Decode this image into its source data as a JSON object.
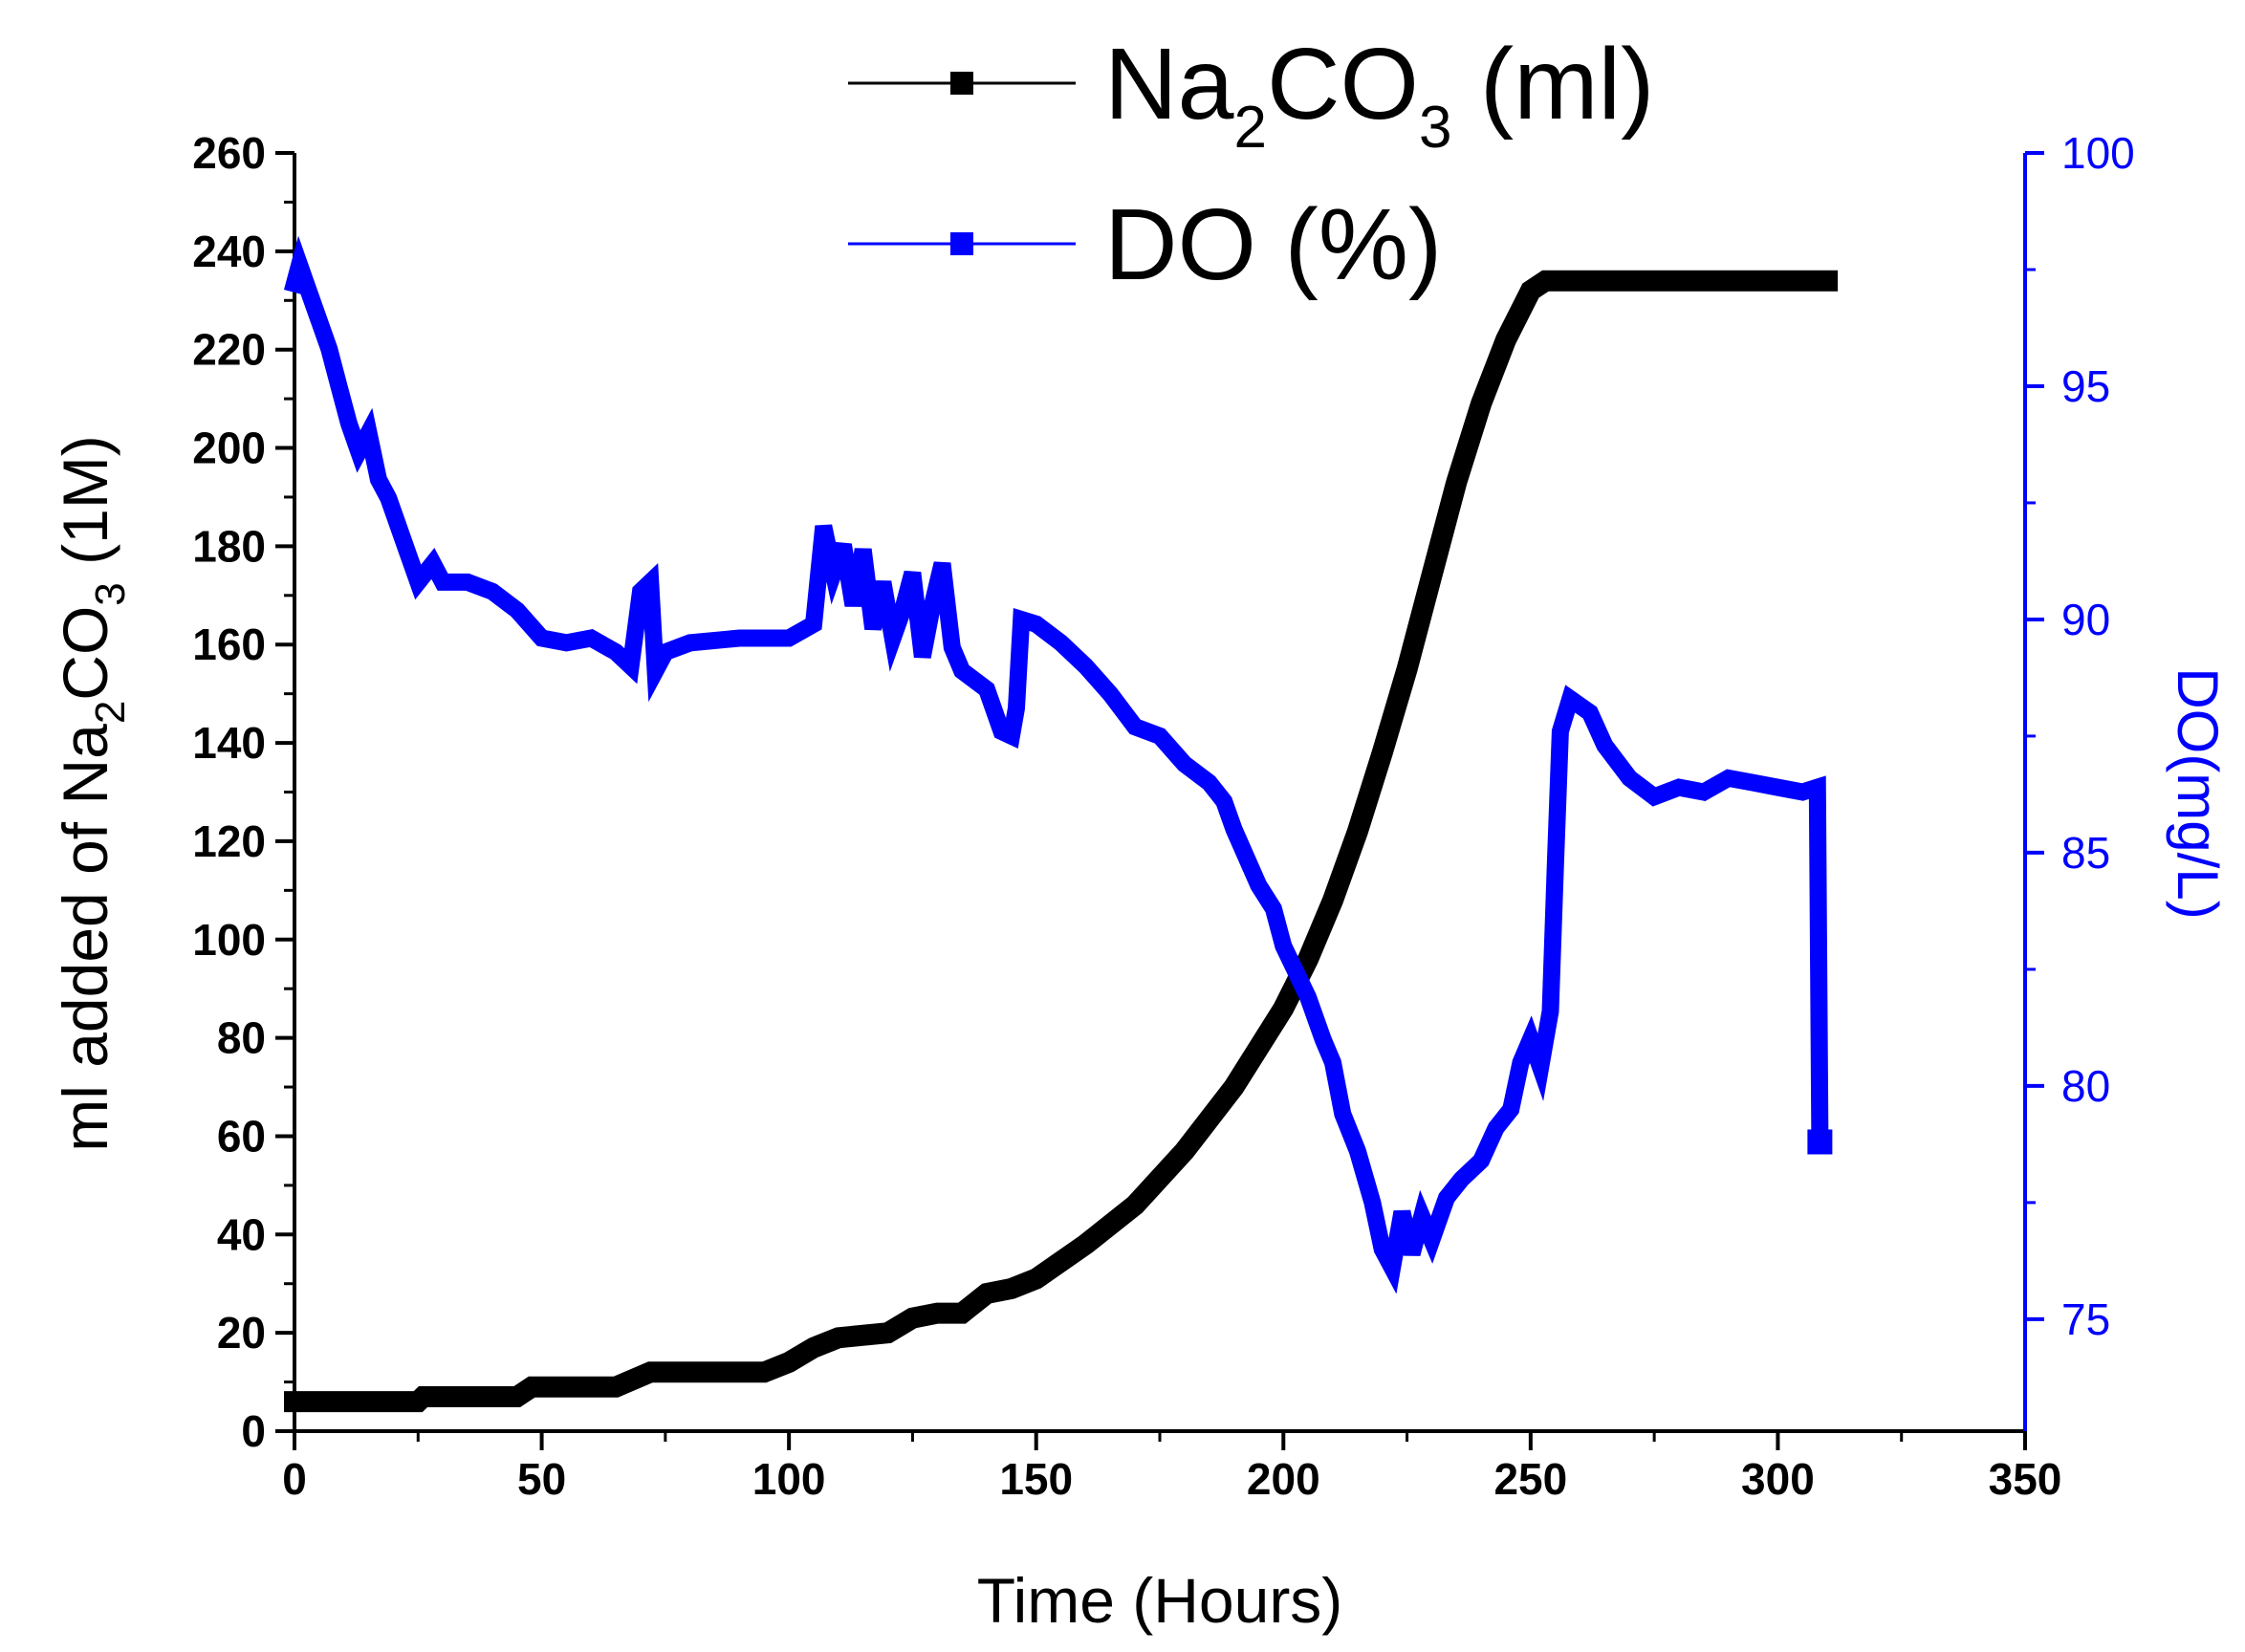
{
  "chart_data": {
    "type": "line",
    "title": "",
    "x_axis": {
      "label": "Time (Hours)",
      "range": [
        0,
        350
      ],
      "ticks": [
        0,
        50,
        100,
        150,
        200,
        250,
        300,
        350
      ]
    },
    "y_axis_left": {
      "label_prefix": "ml added of Na",
      "label_sub_1": "2",
      "label_mid": "CO",
      "label_sub_2": "3",
      "label_suffix": " (1M)",
      "range": [
        0,
        260
      ],
      "ticks": [
        0,
        20,
        40,
        60,
        80,
        100,
        120,
        140,
        160,
        180,
        200,
        220,
        240,
        260
      ]
    },
    "y_axis_right": {
      "label": "DO(mg/L)",
      "range": [
        72.6,
        100
      ],
      "ticks": [
        75,
        80,
        85,
        90,
        95,
        100
      ]
    },
    "legend": {
      "position": "top-center",
      "entries": [
        {
          "name_prefix": "Na",
          "sub_1": "2",
          "mid": "CO",
          "sub_2": "3",
          "suffix": " (ml)",
          "color": "#000000"
        },
        {
          "name": "DO (%)",
          "color": "#0000ff"
        }
      ]
    },
    "series": [
      {
        "name": "Na2CO3 (ml)",
        "axis": "left",
        "color": "#000000",
        "points": [
          [
            0,
            6
          ],
          [
            25,
            6
          ],
          [
            26,
            7
          ],
          [
            45,
            7
          ],
          [
            48,
            9
          ],
          [
            65,
            9
          ],
          [
            72,
            12
          ],
          [
            95,
            12
          ],
          [
            100,
            14
          ],
          [
            105,
            17
          ],
          [
            110,
            19
          ],
          [
            120,
            20
          ],
          [
            125,
            23
          ],
          [
            130,
            24
          ],
          [
            135,
            24
          ],
          [
            140,
            28
          ],
          [
            145,
            29
          ],
          [
            150,
            31
          ],
          [
            160,
            38
          ],
          [
            170,
            46
          ],
          [
            180,
            57
          ],
          [
            190,
            70
          ],
          [
            200,
            86
          ],
          [
            205,
            96
          ],
          [
            210,
            108
          ],
          [
            215,
            122
          ],
          [
            220,
            138
          ],
          [
            225,
            155
          ],
          [
            230,
            174
          ],
          [
            235,
            193
          ],
          [
            240,
            209
          ],
          [
            245,
            222
          ],
          [
            250,
            232
          ],
          [
            253,
            234
          ],
          [
            258,
            234
          ],
          [
            310,
            234
          ]
        ]
      },
      {
        "name": "DO (%)",
        "axis": "right",
        "color": "#0000ff",
        "points": [
          [
            0,
            97.2
          ],
          [
            1,
            97.6
          ],
          [
            3,
            97.0
          ],
          [
            5,
            96.4
          ],
          [
            7,
            95.8
          ],
          [
            9,
            95.0
          ],
          [
            11,
            94.2
          ],
          [
            13,
            93.6
          ],
          [
            15,
            94.0
          ],
          [
            17,
            93.0
          ],
          [
            19,
            92.6
          ],
          [
            21,
            92.0
          ],
          [
            23,
            91.4
          ],
          [
            25,
            90.8
          ],
          [
            28,
            91.2
          ],
          [
            30,
            90.8
          ],
          [
            35,
            90.8
          ],
          [
            40,
            90.6
          ],
          [
            45,
            90.2
          ],
          [
            50,
            89.6
          ],
          [
            55,
            89.5
          ],
          [
            60,
            89.6
          ],
          [
            65,
            89.3
          ],
          [
            68,
            89.0
          ],
          [
            70,
            90.6
          ],
          [
            72,
            90.8
          ],
          [
            73,
            88.9
          ],
          [
            75,
            89.3
          ],
          [
            80,
            89.5
          ],
          [
            90,
            89.6
          ],
          [
            100,
            89.6
          ],
          [
            105,
            89.9
          ],
          [
            107,
            92.0
          ],
          [
            109,
            91.0
          ],
          [
            111,
            91.6
          ],
          [
            113,
            90.3
          ],
          [
            115,
            91.5
          ],
          [
            117,
            89.8
          ],
          [
            119,
            90.8
          ],
          [
            121,
            89.6
          ],
          [
            123,
            90.2
          ],
          [
            125,
            91.0
          ],
          [
            127,
            89.2
          ],
          [
            129,
            90.3
          ],
          [
            131,
            91.2
          ],
          [
            133,
            89.4
          ],
          [
            135,
            88.9
          ],
          [
            140,
            88.5
          ],
          [
            143,
            87.6
          ],
          [
            145,
            87.5
          ],
          [
            146,
            88.1
          ],
          [
            147,
            90.0
          ],
          [
            150,
            89.9
          ],
          [
            155,
            89.5
          ],
          [
            160,
            89.0
          ],
          [
            165,
            88.4
          ],
          [
            170,
            87.7
          ],
          [
            175,
            87.5
          ],
          [
            180,
            86.9
          ],
          [
            185,
            86.5
          ],
          [
            188,
            86.1
          ],
          [
            190,
            85.5
          ],
          [
            195,
            84.3
          ],
          [
            198,
            83.8
          ],
          [
            200,
            83.0
          ],
          [
            205,
            81.9
          ],
          [
            208,
            81.0
          ],
          [
            210,
            80.5
          ],
          [
            212,
            79.4
          ],
          [
            215,
            78.6
          ],
          [
            218,
            77.5
          ],
          [
            220,
            76.5
          ],
          [
            222,
            76.1
          ],
          [
            224,
            77.3
          ],
          [
            226,
            76.4
          ],
          [
            228,
            77.2
          ],
          [
            230,
            76.7
          ],
          [
            233,
            77.6
          ],
          [
            236,
            78.0
          ],
          [
            240,
            78.4
          ],
          [
            243,
            79.1
          ],
          [
            246,
            79.5
          ],
          [
            248,
            80.5
          ],
          [
            250,
            81.0
          ],
          [
            252,
            80.4
          ],
          [
            254,
            81.6
          ],
          [
            255,
            84.7
          ],
          [
            256,
            87.6
          ],
          [
            258,
            88.3
          ],
          [
            262,
            88.0
          ],
          [
            265,
            87.3
          ],
          [
            270,
            86.6
          ],
          [
            275,
            86.2
          ],
          [
            280,
            86.4
          ],
          [
            285,
            86.3
          ],
          [
            290,
            86.6
          ],
          [
            295,
            86.5
          ],
          [
            300,
            86.4
          ],
          [
            305,
            86.3
          ],
          [
            308,
            86.4
          ],
          [
            308.5,
            78.8
          ]
        ]
      }
    ]
  }
}
